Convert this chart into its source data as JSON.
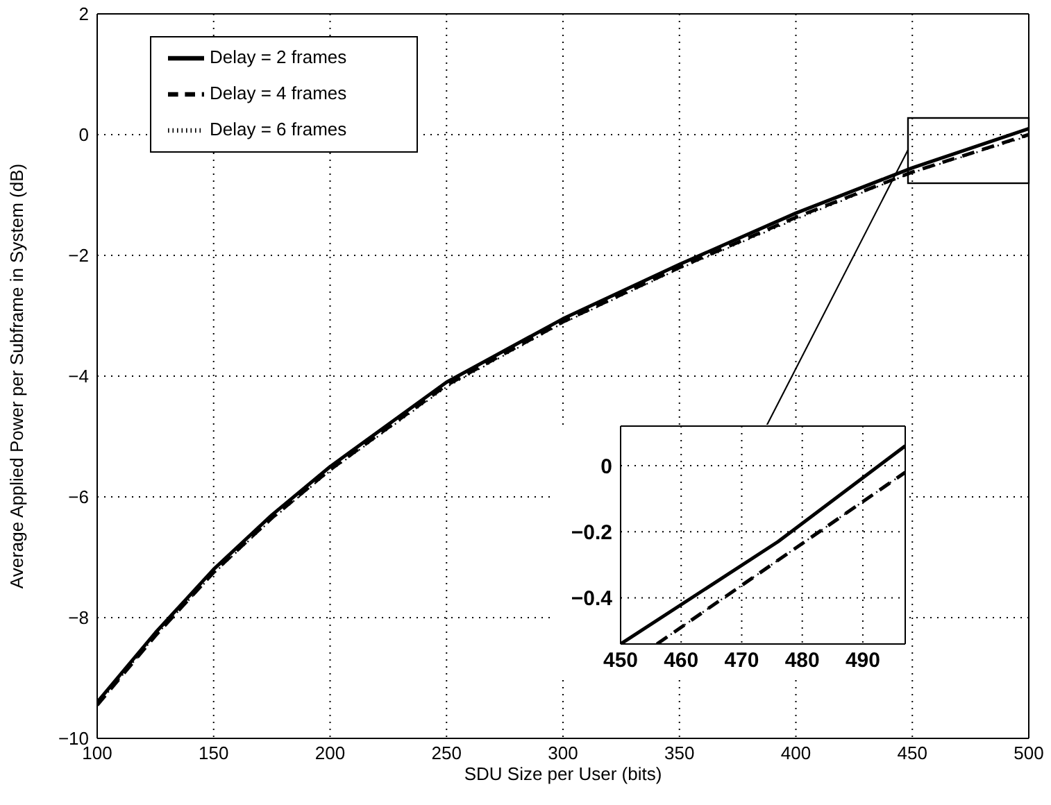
{
  "chart_data": [
    {
      "type": "line",
      "xlabel": "SDU Size per User (bits)",
      "ylabel": "Average Applied Power per Subframe in System (dB)",
      "x": [
        100,
        125,
        150,
        175,
        200,
        250,
        300,
        350,
        400,
        450,
        500
      ],
      "xlim": [
        100,
        500
      ],
      "xticks": [
        100,
        150,
        200,
        250,
        300,
        350,
        400,
        450,
        500
      ],
      "ylim": [
        -10,
        2
      ],
      "yticks": [
        -10,
        -8,
        -6,
        -4,
        -2,
        0,
        2
      ],
      "grid": true,
      "legend": "top left",
      "series": [
        {
          "name": "Delay = 2 frames",
          "color": "#000000",
          "line_style": "solid",
          "values": [
            -9.4,
            -8.25,
            -7.2,
            -6.3,
            -5.5,
            -4.1,
            -3.05,
            -2.15,
            -1.3,
            -0.55,
            0.1
          ]
        },
        {
          "name": "Delay = 4 frames",
          "color": "#000000",
          "line_style": "dashed",
          "values": [
            -9.45,
            -8.3,
            -7.25,
            -6.35,
            -5.55,
            -4.15,
            -3.1,
            -2.2,
            -1.37,
            -0.62,
            0.0
          ]
        },
        {
          "name": "Delay = 6 frames",
          "color": "#000000",
          "line_style": "dotted",
          "values": [
            -9.45,
            -8.3,
            -7.27,
            -6.37,
            -5.57,
            -4.18,
            -3.12,
            -2.22,
            -1.4,
            -0.63,
            -0.02
          ]
        }
      ]
    },
    {
      "type": "line",
      "xlim": [
        450,
        497
      ],
      "xticks": [
        450,
        460,
        470,
        480,
        490
      ],
      "ylim": [
        -0.54,
        0.12
      ],
      "yticks": [
        -0.4,
        -0.2,
        0
      ],
      "grid": true,
      "series": [
        {
          "color": "#000000",
          "line_style": "solid",
          "x": [
            450,
            476,
            497
          ],
          "values": [
            -0.54,
            -0.23,
            0.06
          ]
        },
        {
          "color": "#000000",
          "line_style": "dashed",
          "x": [
            456,
            497
          ],
          "values": [
            -0.54,
            -0.02
          ]
        },
        {
          "color": "#000000",
          "line_style": "dotted",
          "x": [
            456,
            497
          ],
          "values": [
            -0.54,
            -0.02
          ]
        }
      ]
    }
  ]
}
